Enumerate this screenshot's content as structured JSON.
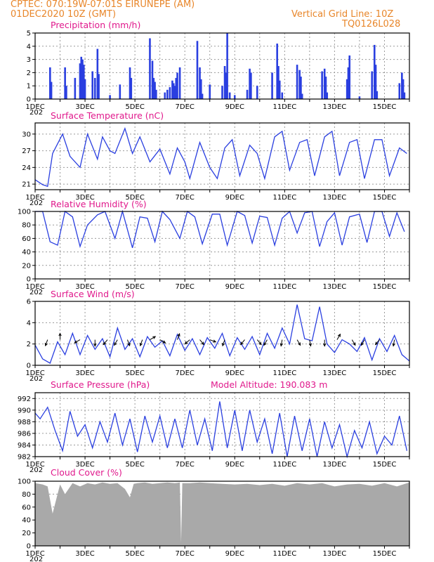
{
  "header": {
    "line1": "CPTEC:   070:19W-07:01S   EIRUNEPE (AM)",
    "line2": "01DEC2020 10Z (GMT)",
    "grid_note": "Vertical Grid Line: 10Z",
    "code": "TQ0126L028"
  },
  "x_axis": {
    "day_start": 1,
    "day_end": 16,
    "labels": [
      {
        "day": 1,
        "text": "1DEC"
      },
      {
        "day": 3,
        "text": "3DEC"
      },
      {
        "day": 5,
        "text": "5DEC"
      },
      {
        "day": 7,
        "text": "7DEC"
      },
      {
        "day": 9,
        "text": "9DEC"
      },
      {
        "day": 11,
        "text": "11DEC"
      },
      {
        "day": 13,
        "text": "13DEC"
      },
      {
        "day": 15,
        "text": "15DEC"
      }
    ],
    "year_stub": "202"
  },
  "colors": {
    "line": "#2a3fe0",
    "title": "#e0198c",
    "header": "#e8862a",
    "cloud": "#a9a9a9"
  },
  "panels": {
    "precip": {
      "title": "Precipitation  (mm/h)",
      "yticks": [
        "0",
        "1",
        "2",
        "3",
        "4",
        "5"
      ]
    },
    "temp": {
      "title": "Surface Temperature  (nC)",
      "yticks": [
        "21",
        "24",
        "27",
        "30"
      ]
    },
    "rh": {
      "title": "Relative Humidity  (%)",
      "yticks": [
        "0",
        "20",
        "40",
        "60",
        "80",
        "100"
      ]
    },
    "wind": {
      "title": "Surface Wind  (m/s)",
      "yticks": [
        "0",
        "2",
        "4",
        "6"
      ]
    },
    "pres": {
      "title": "Surface Pressure  (hPa)",
      "subtitle": "Model Altitude:  190.083  m",
      "yticks": [
        "982",
        "984",
        "986",
        "988",
        "990",
        "992"
      ]
    },
    "cloud": {
      "title": "Cloud Cover  (%)",
      "yticks": [
        "0",
        "20",
        "40",
        "60",
        "80",
        "100"
      ]
    }
  },
  "chart_data": [
    {
      "type": "bar",
      "title": "Precipitation  (mm/h)",
      "ylim": [
        0,
        5
      ],
      "x_unit": "day of December 2020 (decimal)",
      "x": [
        1.6,
        1.65,
        2.2,
        2.25,
        2.6,
        2.8,
        2.85,
        2.9,
        2.95,
        3.0,
        3.3,
        3.4,
        3.5,
        3.55,
        4.0,
        4.4,
        4.8,
        4.85,
        5.6,
        5.7,
        5.75,
        5.8,
        5.85,
        6.2,
        6.3,
        6.4,
        6.5,
        6.55,
        6.6,
        6.65,
        6.7,
        6.8,
        7.5,
        7.6,
        7.65,
        7.7,
        8.0,
        8.5,
        8.6,
        8.65,
        8.7,
        8.8,
        9.0,
        9.5,
        9.6,
        9.65,
        9.9,
        10.5,
        10.7,
        10.75,
        10.8,
        10.9,
        11.5,
        11.6,
        11.65,
        11.7,
        12.5,
        12.6,
        12.65,
        12.7,
        13.5,
        13.55,
        13.6,
        14.0,
        14.5,
        14.6,
        14.65,
        14.7,
        15.6,
        15.7,
        15.75,
        15.8
      ],
      "values": [
        2.4,
        1.3,
        2.4,
        1.0,
        1.6,
        2.7,
        3.2,
        3.0,
        2.6,
        1.5,
        2.1,
        1.6,
        3.8,
        1.9,
        0.3,
        1.1,
        2.4,
        1.6,
        4.6,
        2.9,
        1.6,
        1.3,
        0.7,
        0.5,
        0.7,
        0.9,
        1.4,
        1.2,
        1.0,
        1.6,
        2.0,
        2.4,
        4.4,
        2.4,
        1.5,
        0.4,
        1.1,
        1.0,
        2.5,
        2.0,
        5.0,
        0.5,
        0.3,
        0.7,
        2.3,
        2.0,
        1.0,
        2.0,
        4.2,
        2.5,
        1.4,
        0.5,
        2.6,
        2.2,
        1.7,
        0.4,
        2.1,
        2.3,
        1.7,
        0.5,
        1.5,
        2.4,
        3.3,
        0.2,
        2.1,
        4.1,
        2.6,
        0.6,
        1.2,
        2.0,
        1.5,
        0.5
      ]
    },
    {
      "type": "line",
      "title": "Surface Temperature  (nC)",
      "ylim": [
        20,
        32
      ],
      "x": [
        1.0,
        1.3,
        1.5,
        1.7,
        2.1,
        2.4,
        2.8,
        3.1,
        3.5,
        3.7,
        4.0,
        4.2,
        4.6,
        4.9,
        5.2,
        5.6,
        6.0,
        6.4,
        6.7,
        7.0,
        7.2,
        7.6,
        8.0,
        8.3,
        8.6,
        8.9,
        9.2,
        9.6,
        9.9,
        10.2,
        10.6,
        10.9,
        11.2,
        11.6,
        11.9,
        12.2,
        12.6,
        12.9,
        13.2,
        13.6,
        13.9,
        14.2,
        14.6,
        14.9,
        15.2,
        15.6,
        15.9
      ],
      "values": [
        21.8,
        20.9,
        20.6,
        26.5,
        30.0,
        26.0,
        24.0,
        30.0,
        25.5,
        29.5,
        27.0,
        26.5,
        31.0,
        26.5,
        29.5,
        25.0,
        27.3,
        22.8,
        27.5,
        25.0,
        22.0,
        28.5,
        24.0,
        22.0,
        27.5,
        29.0,
        22.5,
        28.0,
        26.5,
        22.0,
        29.5,
        30.5,
        23.5,
        28.5,
        29.0,
        22.5,
        29.5,
        30.5,
        22.5,
        28.5,
        29.0,
        22.0,
        29.0,
        29.0,
        22.5,
        27.5,
        26.5
      ]
    },
    {
      "type": "line",
      "title": "Relative Humidity  (%)",
      "ylim": [
        0,
        100
      ],
      "x": [
        1.0,
        1.3,
        1.6,
        1.9,
        2.2,
        2.5,
        2.8,
        3.1,
        3.5,
        3.8,
        4.2,
        4.5,
        4.9,
        5.2,
        5.5,
        5.8,
        6.1,
        6.4,
        6.8,
        7.1,
        7.4,
        7.7,
        8.1,
        8.4,
        8.7,
        9.1,
        9.4,
        9.7,
        10.0,
        10.3,
        10.6,
        10.9,
        11.2,
        11.5,
        11.8,
        12.1,
        12.4,
        12.7,
        13.0,
        13.3,
        13.6,
        14.0,
        14.3,
        14.6,
        14.9,
        15.2,
        15.5,
        15.8
      ],
      "values": [
        100,
        100,
        55,
        50,
        100,
        92,
        48,
        80,
        95,
        100,
        60,
        100,
        46,
        92,
        90,
        55,
        100,
        88,
        60,
        100,
        92,
        52,
        96,
        96,
        50,
        100,
        94,
        53,
        93,
        91,
        50,
        90,
        100,
        68,
        98,
        100,
        48,
        85,
        98,
        50,
        92,
        96,
        54,
        100,
        100,
        63,
        98,
        70
      ]
    },
    {
      "type": "line",
      "title": "Surface Wind  (m/s)",
      "ylim": [
        0,
        6
      ],
      "x": [
        1.0,
        1.3,
        1.6,
        1.9,
        2.2,
        2.5,
        2.8,
        3.1,
        3.4,
        3.7,
        4.0,
        4.3,
        4.6,
        4.9,
        5.2,
        5.5,
        5.8,
        6.1,
        6.4,
        6.7,
        7.0,
        7.3,
        7.6,
        7.9,
        8.2,
        8.5,
        8.8,
        9.1,
        9.4,
        9.7,
        10.0,
        10.3,
        10.6,
        10.9,
        11.2,
        11.5,
        11.8,
        12.1,
        12.4,
        12.7,
        13.0,
        13.3,
        13.6,
        13.9,
        14.2,
        14.5,
        14.8,
        15.1,
        15.4,
        15.7,
        16.0
      ],
      "values": [
        1.9,
        0.6,
        0.2,
        2.2,
        1.0,
        3.0,
        1.0,
        2.8,
        1.5,
        2.5,
        0.8,
        3.5,
        1.5,
        2.5,
        0.8,
        2.7,
        1.7,
        2.3,
        0.9,
        2.9,
        1.4,
        2.5,
        1.0,
        2.6,
        1.6,
        3.0,
        0.9,
        2.6,
        1.5,
        2.7,
        1.0,
        3.0,
        1.6,
        3.5,
        2.0,
        5.7,
        2.5,
        2.3,
        5.5,
        2.0,
        1.2,
        2.4,
        2.0,
        1.3,
        2.6,
        0.5,
        2.5,
        1.3,
        2.8,
        1.0,
        0.4
      ],
      "arrows": [
        {
          "x": 1.5,
          "dir": 200
        },
        {
          "x": 2.0,
          "dir": 0
        },
        {
          "x": 2.8,
          "dir": 240
        },
        {
          "x": 3.4,
          "dir": 180
        },
        {
          "x": 3.9,
          "dir": 220
        },
        {
          "x": 4.3,
          "dir": 210
        },
        {
          "x": 4.7,
          "dir": 160
        },
        {
          "x": 5.3,
          "dir": 200
        },
        {
          "x": 5.6,
          "dir": 60
        },
        {
          "x": 6.0,
          "dir": 120
        },
        {
          "x": 6.7,
          "dir": 20
        },
        {
          "x": 7.2,
          "dir": 230
        },
        {
          "x": 7.6,
          "dir": 140
        },
        {
          "x": 8.0,
          "dir": 110
        },
        {
          "x": 8.6,
          "dir": 200
        },
        {
          "x": 9.4,
          "dir": 220
        },
        {
          "x": 9.9,
          "dir": 140
        },
        {
          "x": 10.3,
          "dir": 210
        },
        {
          "x": 10.9,
          "dir": 190
        },
        {
          "x": 11.5,
          "dir": 150
        },
        {
          "x": 12.0,
          "dir": 170
        },
        {
          "x": 12.6,
          "dir": 180
        },
        {
          "x": 13.1,
          "dir": 30
        },
        {
          "x": 13.7,
          "dir": 150
        },
        {
          "x": 14.2,
          "dir": 210
        },
        {
          "x": 14.8,
          "dir": 220
        },
        {
          "x": 15.4,
          "dir": 190
        }
      ]
    },
    {
      "type": "line",
      "title": "Surface Pressure  (hPa)",
      "ylim": [
        982,
        993
      ],
      "x": [
        1.0,
        1.2,
        1.5,
        1.8,
        2.1,
        2.4,
        2.7,
        3.0,
        3.3,
        3.6,
        3.9,
        4.2,
        4.5,
        4.8,
        5.1,
        5.4,
        5.7,
        6.0,
        6.3,
        6.6,
        6.9,
        7.2,
        7.5,
        7.8,
        8.1,
        8.4,
        8.7,
        9.0,
        9.3,
        9.6,
        9.9,
        10.2,
        10.5,
        10.8,
        11.1,
        11.4,
        11.7,
        12.0,
        12.3,
        12.6,
        12.9,
        13.2,
        13.5,
        13.8,
        14.1,
        14.4,
        14.7,
        15.0,
        15.3,
        15.6,
        15.9
      ],
      "values": [
        989.5,
        988.5,
        990.5,
        986.5,
        983.0,
        989.8,
        985.5,
        987.5,
        983.5,
        988.0,
        984.5,
        989.5,
        984.0,
        988.5,
        982.8,
        989.0,
        984.5,
        989.0,
        983.5,
        988.5,
        983.5,
        990.0,
        984.0,
        988.5,
        983.0,
        991.5,
        983.5,
        990.0,
        983.0,
        990.0,
        984.5,
        988.5,
        982.5,
        989.5,
        982.0,
        989.0,
        983.0,
        988.5,
        982.0,
        988.0,
        983.5,
        987.5,
        982.0,
        986.5,
        983.5,
        988.0,
        982.5,
        985.5,
        984.0,
        989.0,
        983.0
      ]
    },
    {
      "type": "area",
      "title": "Cloud Cover  (%)",
      "ylim": [
        0,
        100
      ],
      "x": [
        1.0,
        1.3,
        1.5,
        1.7,
        2.0,
        2.2,
        2.5,
        2.8,
        3.1,
        3.4,
        3.7,
        4.0,
        4.3,
        4.6,
        4.8,
        4.95,
        5.1,
        5.4,
        5.7,
        6.0,
        6.3,
        6.6,
        6.8,
        6.85,
        6.9,
        7.2,
        7.6,
        8.0,
        8.5,
        9.0,
        9.5,
        10.0,
        10.5,
        11.0,
        11.5,
        12.0,
        12.5,
        13.0,
        13.5,
        14.0,
        14.5,
        15.0,
        15.5,
        16.0
      ],
      "values": [
        97,
        95,
        92,
        50,
        95,
        80,
        97,
        92,
        97,
        95,
        98,
        96,
        97,
        88,
        75,
        96,
        97,
        98,
        96,
        97,
        98,
        97,
        98,
        5,
        97,
        97,
        98,
        97,
        96,
        95,
        96,
        94,
        96,
        93,
        97,
        95,
        97,
        92,
        95,
        96,
        93,
        97,
        92,
        98
      ]
    }
  ]
}
